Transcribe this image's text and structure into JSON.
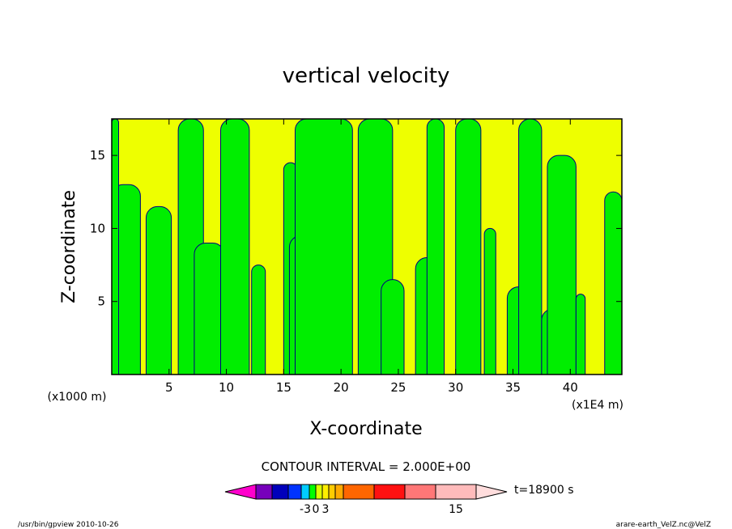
{
  "chart_data": {
    "type": "heatmap",
    "title": "vertical velocity",
    "xlabel": "X-coordinate",
    "ylabel": "Z-coordinate",
    "x_unit_label": "(x1000 m)",
    "x_scale_label": "(x1E4 m)",
    "xlim": [
      0,
      44.5
    ],
    "ylim": [
      0,
      17.5
    ],
    "x_ticks": [
      {
        "v": 5,
        "label": "5"
      },
      {
        "v": 10,
        "label": "10"
      },
      {
        "v": 15,
        "label": "15"
      },
      {
        "v": 20,
        "label": "20"
      },
      {
        "v": 25,
        "label": "25"
      },
      {
        "v": 30,
        "label": "30"
      },
      {
        "v": 35,
        "label": "35"
      },
      {
        "v": 40,
        "label": "40"
      }
    ],
    "y_ticks": [
      {
        "v": 5,
        "label": "5"
      },
      {
        "v": 10,
        "label": "10"
      },
      {
        "v": 15,
        "label": "15"
      }
    ],
    "regions": {
      "negative_color": "#00ee00",
      "positive_color": "#eeff00",
      "outline_color": "#000080"
    },
    "green_bands": [
      {
        "x": 0.0,
        "w": 2.5,
        "yTop": 13.0
      },
      {
        "x": 0.0,
        "w": 0.6,
        "yTop": 17.5
      },
      {
        "x": 3.0,
        "w": 2.2,
        "yTop": 11.5
      },
      {
        "x": 5.8,
        "w": 2.2,
        "yTop": 17.5
      },
      {
        "x": 7.2,
        "w": 2.6,
        "yTop": 9.0
      },
      {
        "x": 9.5,
        "w": 2.5,
        "yTop": 17.5
      },
      {
        "x": 12.2,
        "w": 1.2,
        "yTop": 7.5
      },
      {
        "x": 15.0,
        "w": 1.2,
        "yTop": 14.5
      },
      {
        "x": 15.5,
        "w": 4.5,
        "yTop": 9.5
      },
      {
        "x": 16.0,
        "w": 5.0,
        "yTop": 17.5
      },
      {
        "x": 21.5,
        "w": 3.0,
        "yTop": 17.5
      },
      {
        "x": 23.5,
        "w": 2.0,
        "yTop": 6.5
      },
      {
        "x": 26.5,
        "w": 2.0,
        "yTop": 8.0
      },
      {
        "x": 27.5,
        "w": 1.5,
        "yTop": 17.5
      },
      {
        "x": 30.0,
        "w": 2.2,
        "yTop": 17.5
      },
      {
        "x": 32.5,
        "w": 1.0,
        "yTop": 10.0
      },
      {
        "x": 34.5,
        "w": 2.5,
        "yTop": 6.0
      },
      {
        "x": 35.5,
        "w": 2.0,
        "yTop": 17.5
      },
      {
        "x": 37.5,
        "w": 2.0,
        "yTop": 4.5
      },
      {
        "x": 38.0,
        "w": 2.5,
        "yTop": 15.0
      },
      {
        "x": 40.5,
        "w": 0.8,
        "yTop": 5.5
      },
      {
        "x": 43.0,
        "w": 1.5,
        "yTop": 12.5
      }
    ],
    "colorbar": {
      "title": "CONTOUR INTERVAL = 2.000E+00",
      "time_label": "t=18900 s",
      "colors": [
        "#ff00cc",
        "#7700bb",
        "#0000bb",
        "#0033ff",
        "#00ccff",
        "#00ff00",
        "#ddff00",
        "#ffee00",
        "#ffcc00",
        "#ffaa00",
        "#ff6600",
        "#ff1111",
        "#ff7777",
        "#ffbbbb",
        "#ffdddd"
      ],
      "tick_labels": [
        {
          "label": "-3",
          "pos": 4
        },
        {
          "label": "0",
          "pos": 5.5
        },
        {
          "label": "3",
          "pos": 7
        },
        {
          "label": "15",
          "pos": 13
        }
      ]
    }
  },
  "footer": {
    "left": "/usr/bin/gpview   2010-10-26",
    "right": "arare-earth_VelZ.nc@VelZ"
  }
}
